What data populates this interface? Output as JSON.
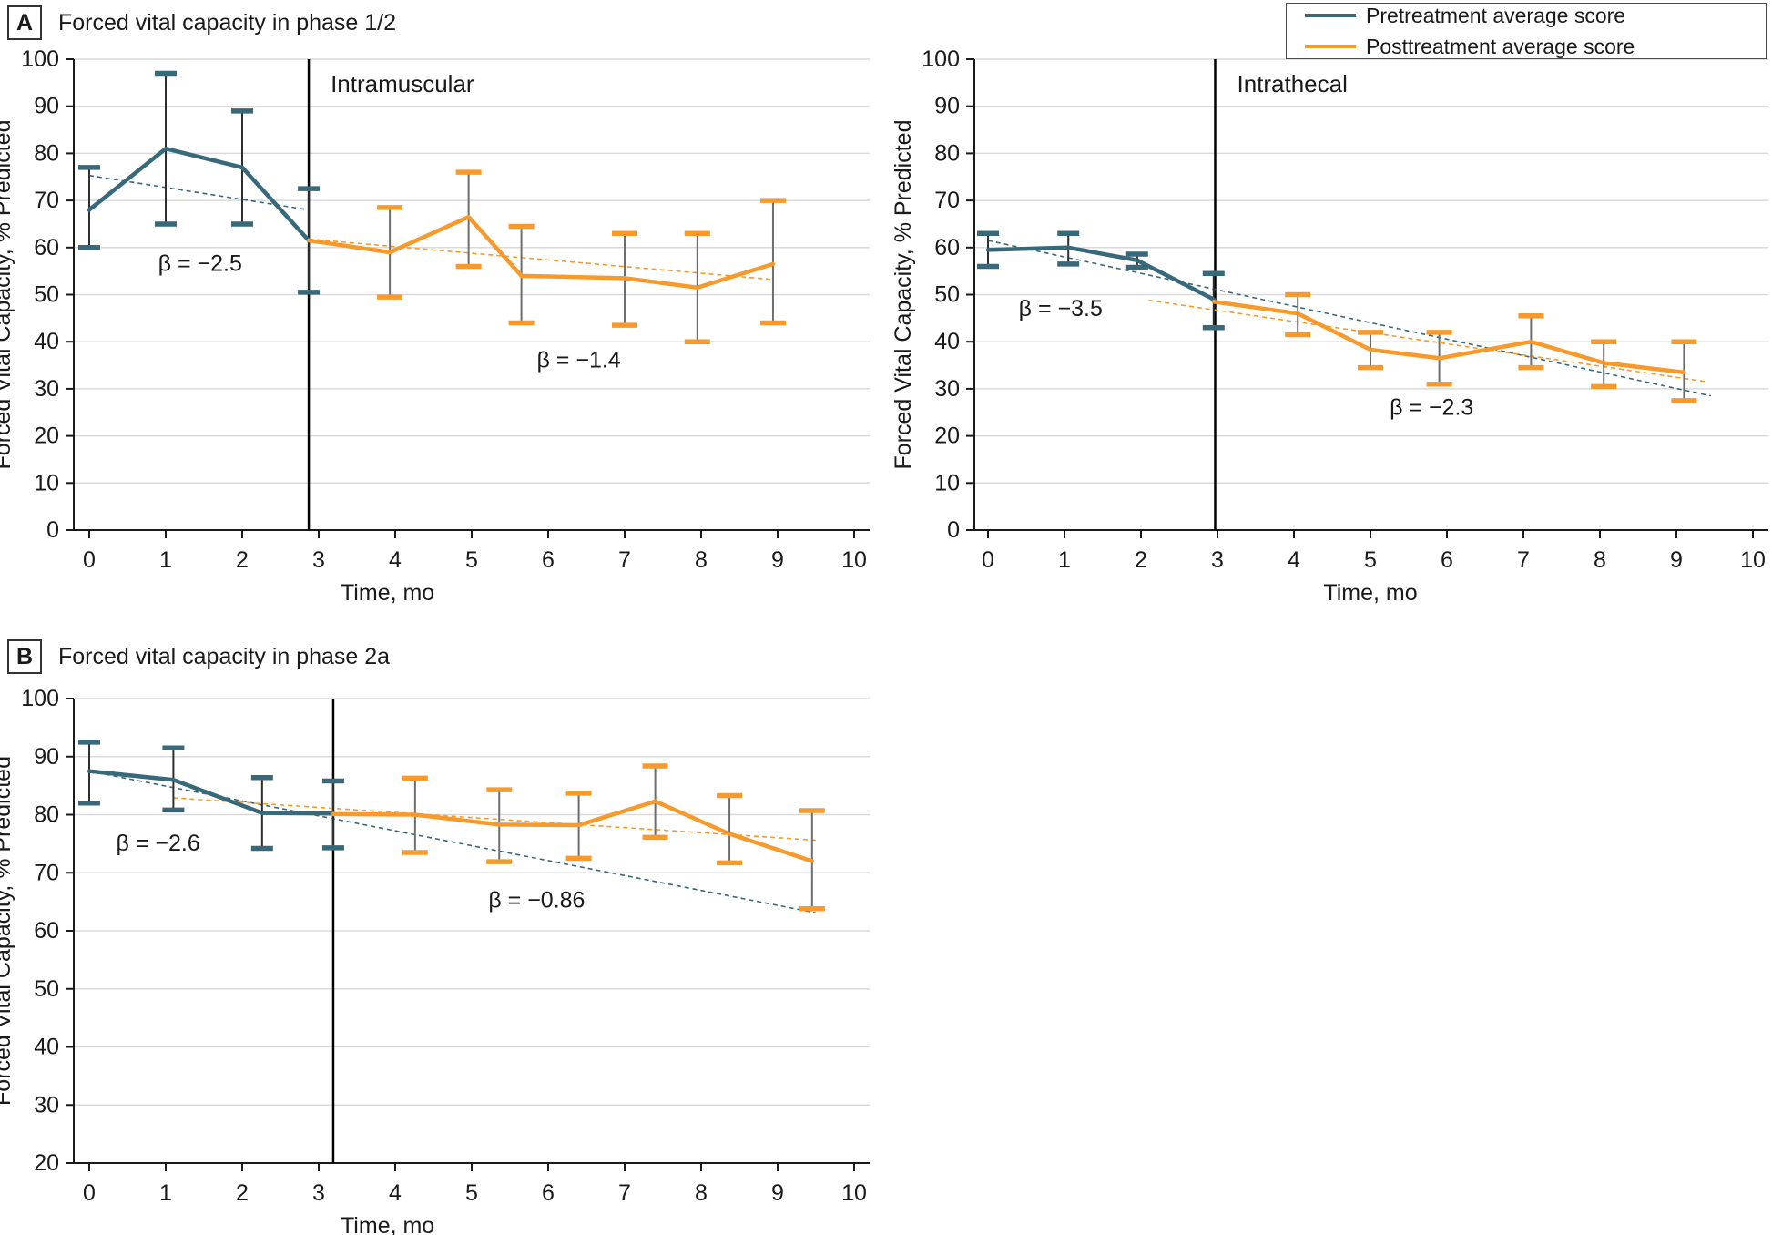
{
  "panels": {
    "a": {
      "label": "A",
      "title": "Forced vital capacity in phase 1/2"
    },
    "b": {
      "label": "B",
      "title": "Forced vital capacity in phase 2a"
    }
  },
  "legend": {
    "items": [
      {
        "label": "Pretreatment average score",
        "series": "pretreatment"
      },
      {
        "label": "Posttreatment average score",
        "series": "posttreatment"
      }
    ]
  },
  "colors": {
    "pretreatment": "#38697A",
    "posttreatment": "#F79A2B",
    "pre_whisker": "#2E2E2E",
    "post_whisker": "#6E6E6E",
    "gridline": "#DADADA",
    "axis": "#1A1A1A",
    "divider": "#000000"
  },
  "chart_data": [
    {
      "type": "line",
      "inner_label": "Intramuscular",
      "xlabel": "Time, mo",
      "ylabel": "Forced Vital Capacity, % Predicted",
      "xlim": [
        0,
        10
      ],
      "ylim": [
        0,
        100
      ],
      "xtick_step": 1,
      "ytick_step": 10,
      "grid": true,
      "divider_x": 2.87,
      "series": [
        {
          "name": "pretreatment",
          "points": [
            {
              "x": 0,
              "y": 68,
              "lo": 60,
              "hi": 77
            },
            {
              "x": 1,
              "y": 81,
              "lo": 65,
              "hi": 97
            },
            {
              "x": 2,
              "y": 77,
              "lo": 65,
              "hi": 89
            },
            {
              "x": 2.87,
              "y": 61.5,
              "lo": 50.5,
              "hi": 72.5
            }
          ]
        },
        {
          "name": "posttreatment",
          "points": [
            {
              "x": 2.87,
              "y": 61.5
            },
            {
              "x": 3.93,
              "y": 59,
              "lo": 49.5,
              "hi": 68.5
            },
            {
              "x": 4.96,
              "y": 66.5,
              "lo": 56,
              "hi": 76
            },
            {
              "x": 5.65,
              "y": 54,
              "lo": 44,
              "hi": 64.5
            },
            {
              "x": 7,
              "y": 53.5,
              "lo": 43.5,
              "hi": 63
            },
            {
              "x": 7.95,
              "y": 51.5,
              "lo": 40,
              "hi": 63
            },
            {
              "x": 8.94,
              "y": 56.5,
              "lo": 44,
              "hi": 70
            }
          ]
        }
      ],
      "trendlines": [
        {
          "series": "pretreatment",
          "x1": 0,
          "y1": 75.3,
          "x2": 2.87,
          "y2": 68.0,
          "beta": -2.5
        },
        {
          "series": "posttreatment",
          "x1": 2.87,
          "y1": 61.8,
          "x2": 8.95,
          "y2": 53.2,
          "beta": -1.4
        }
      ],
      "annotations": [
        {
          "text": "β = −2.5",
          "x": 1.45,
          "y": 55
        },
        {
          "text": "β = −1.4",
          "x": 6.4,
          "y": 34.5
        }
      ]
    },
    {
      "type": "line",
      "inner_label": "Intrathecal",
      "xlabel": "Time, mo",
      "ylabel": "Forced Vital Capacity, % Predicted",
      "xlim": [
        0,
        10
      ],
      "ylim": [
        0,
        100
      ],
      "xtick_step": 1,
      "ytick_step": 10,
      "grid": true,
      "divider_x": 2.97,
      "series": [
        {
          "name": "pretreatment",
          "points": [
            {
              "x": 0,
              "y": 59.5,
              "lo": 56,
              "hi": 63
            },
            {
              "x": 1.05,
              "y": 60,
              "lo": 56.5,
              "hi": 63
            },
            {
              "x": 1.95,
              "y": 57.3,
              "lo": 55.8,
              "hi": 58.6
            },
            {
              "x": 2.95,
              "y": 49,
              "lo": 43,
              "hi": 54.5
            }
          ]
        },
        {
          "name": "posttreatment",
          "points": [
            {
              "x": 2.95,
              "y": 48.5
            },
            {
              "x": 4.05,
              "y": 46,
              "lo": 41.5,
              "hi": 50
            },
            {
              "x": 5.0,
              "y": 38.3,
              "lo": 34.5,
              "hi": 42
            },
            {
              "x": 5.9,
              "y": 36.5,
              "lo": 31,
              "hi": 42
            },
            {
              "x": 7.1,
              "y": 40,
              "lo": 34.5,
              "hi": 45.5
            },
            {
              "x": 8.05,
              "y": 35.5,
              "lo": 30.5,
              "hi": 40
            },
            {
              "x": 9.1,
              "y": 33.5,
              "lo": 27.5,
              "hi": 40
            }
          ]
        }
      ],
      "trendlines": [
        {
          "series": "pretreatment",
          "x1": 0,
          "y1": 61.5,
          "x2": 9.45,
          "y2": 28.5,
          "beta": -3.5
        },
        {
          "series": "posttreatment",
          "x1": 2.1,
          "y1": 48.8,
          "x2": 9.4,
          "y2": 31.5,
          "beta": -2.3
        }
      ],
      "annotations": [
        {
          "text": "β = −3.5",
          "x": 0.95,
          "y": 45.5
        },
        {
          "text": "β = −2.3",
          "x": 5.8,
          "y": 24.5
        }
      ]
    },
    {
      "type": "line",
      "inner_label": "",
      "xlabel": "Time, mo",
      "ylabel": "Forced Vital Capacity, % Predicted",
      "xlim": [
        0,
        10
      ],
      "ylim": [
        20,
        100
      ],
      "xtick_step": 1,
      "ytick_step": 10,
      "grid": true,
      "divider_x": 3.19,
      "series": [
        {
          "name": "pretreatment",
          "points": [
            {
              "x": 0,
              "y": 87.5,
              "lo": 82,
              "hi": 92.5
            },
            {
              "x": 1.1,
              "y": 86,
              "lo": 80.8,
              "hi": 91.5
            },
            {
              "x": 2.26,
              "y": 80.3,
              "lo": 74.2,
              "hi": 86.4
            },
            {
              "x": 3.19,
              "y": 80.2,
              "lo": 74.3,
              "hi": 85.8
            }
          ]
        },
        {
          "name": "posttreatment",
          "points": [
            {
              "x": 3.19,
              "y": 80.1
            },
            {
              "x": 4.26,
              "y": 80,
              "lo": 73.5,
              "hi": 86.3
            },
            {
              "x": 5.36,
              "y": 78.3,
              "lo": 71.9,
              "hi": 84.3
            },
            {
              "x": 6.4,
              "y": 78.2,
              "lo": 72.5,
              "hi": 83.7
            },
            {
              "x": 7.4,
              "y": 82.3,
              "lo": 76.1,
              "hi": 88.4
            },
            {
              "x": 8.37,
              "y": 76.7,
              "lo": 71.7,
              "hi": 83.3
            },
            {
              "x": 9.45,
              "y": 72,
              "lo": 63.8,
              "hi": 80.7
            }
          ]
        }
      ],
      "trendlines": [
        {
          "series": "pretreatment",
          "x1": 0,
          "y1": 87.5,
          "x2": 9.5,
          "y2": 63.1,
          "beta": -2.6
        },
        {
          "series": "posttreatment",
          "x1": 1.1,
          "y1": 82.9,
          "x2": 9.5,
          "y2": 75.6,
          "beta": -0.86
        }
      ],
      "annotations": [
        {
          "text": "β = −2.6",
          "x": 0.9,
          "y": 73.8
        },
        {
          "text": "β = −0.86",
          "x": 5.85,
          "y": 64
        }
      ]
    }
  ]
}
